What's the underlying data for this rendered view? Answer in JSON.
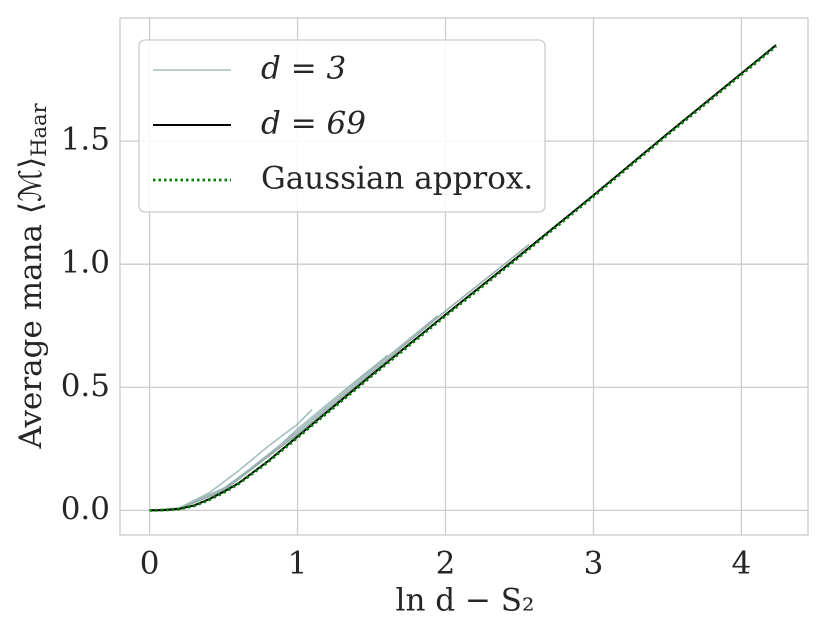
{
  "chart_data": {
    "type": "line",
    "xlabel": "ln d − S₂",
    "ylabel": "Average mana ⟨ℳ⟩",
    "ylabel_sub": "Haar",
    "xlim": [
      -0.2,
      4.45
    ],
    "ylim": [
      -0.1,
      2.0
    ],
    "xticks": [
      0,
      1,
      2,
      3,
      4
    ],
    "yticks": [
      {
        "value": 0,
        "label": "0.0"
      },
      0.5,
      {
        "value": 1,
        "label": "1.0"
      },
      1.5
    ],
    "grid": true,
    "legend": "upper left",
    "series": [
      {
        "name": "d = 3",
        "color": "#a3bfbd",
        "style": "solid",
        "x": [
          0,
          0.2,
          0.4,
          0.6,
          0.8,
          1.0,
          1.0986
        ],
        "values": [
          0,
          0.01,
          0.07,
          0.16,
          0.26,
          0.35,
          0.41
        ]
      },
      {
        "color": "#a0bbba",
        "style": "solid",
        "x": [
          0,
          0.2,
          0.5,
          0.8,
          1.0,
          1.3,
          1.609
        ],
        "values": [
          0,
          0.008,
          0.09,
          0.22,
          0.33,
          0.48,
          0.63
        ]
      },
      {
        "color": "#9db6b5",
        "style": "solid",
        "x": [
          0,
          0.2,
          0.5,
          1.0,
          1.5,
          1.946
        ],
        "values": [
          0,
          0.007,
          0.085,
          0.32,
          0.57,
          0.79
        ]
      },
      {
        "color": "#98aeae",
        "style": "solid",
        "x": [
          0,
          0.2,
          0.5,
          1.0,
          1.5,
          2.0,
          2.565
        ],
        "values": [
          0,
          0.007,
          0.08,
          0.31,
          0.56,
          0.81,
          1.08
        ]
      },
      {
        "name": "d = 69",
        "color": "#000000",
        "style": "solid",
        "x": [
          0,
          0.1,
          0.2,
          0.3,
          0.4,
          0.5,
          0.6,
          0.8,
          1.0,
          1.25,
          1.5,
          2.0,
          2.5,
          3.0,
          3.5,
          4.0,
          4.234
        ],
        "values": [
          0,
          0.001,
          0.006,
          0.02,
          0.045,
          0.075,
          0.11,
          0.2,
          0.3,
          0.425,
          0.55,
          0.795,
          1.035,
          1.28,
          1.53,
          1.775,
          1.89
        ]
      },
      {
        "name": "Gaussian approx.",
        "color": "#008000",
        "style": "dotted",
        "x": [
          0,
          0.1,
          0.2,
          0.3,
          0.4,
          0.5,
          0.6,
          0.8,
          1.0,
          1.25,
          1.5,
          2.0,
          2.5,
          3.0,
          3.5,
          4.0,
          4.234
        ],
        "values": [
          0,
          0.001,
          0.005,
          0.018,
          0.042,
          0.072,
          0.107,
          0.196,
          0.296,
          0.42,
          0.545,
          0.79,
          1.03,
          1.275,
          1.525,
          1.77,
          1.885
        ]
      }
    ]
  }
}
